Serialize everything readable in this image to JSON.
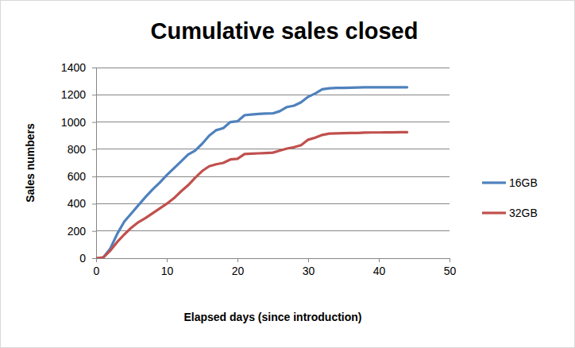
{
  "chart_data": {
    "type": "line",
    "title": "Cumulative sales closed",
    "x_label": "Elapsed days (since introduction)",
    "y_label": "Sales numbers",
    "x": [
      0,
      1,
      2,
      3,
      4,
      5,
      6,
      7,
      8,
      9,
      10,
      11,
      12,
      13,
      14,
      15,
      16,
      17,
      18,
      19,
      20,
      21,
      22,
      23,
      24,
      25,
      26,
      27,
      28,
      29,
      30,
      31,
      32,
      33,
      34,
      35,
      36,
      37,
      38,
      39,
      40,
      41,
      42,
      43,
      44
    ],
    "series": [
      {
        "name": "16GB",
        "color": "#4f81bd",
        "values": [
          0,
          5,
          70,
          180,
          270,
          330,
          390,
          450,
          505,
          555,
          610,
          660,
          710,
          760,
          790,
          840,
          900,
          940,
          955,
          1000,
          1005,
          1050,
          1055,
          1060,
          1062,
          1063,
          1080,
          1110,
          1120,
          1145,
          1185,
          1210,
          1240,
          1248,
          1250,
          1251,
          1252,
          1253,
          1255,
          1255,
          1255,
          1255,
          1255,
          1255,
          1255
        ]
      },
      {
        "name": "32GB",
        "color": "#c0504d",
        "values": [
          0,
          5,
          55,
          120,
          175,
          225,
          265,
          295,
          330,
          365,
          400,
          440,
          490,
          535,
          590,
          640,
          675,
          690,
          700,
          725,
          730,
          765,
          768,
          770,
          772,
          775,
          790,
          805,
          815,
          830,
          870,
          885,
          905,
          915,
          917,
          918,
          919,
          920,
          922,
          923,
          923,
          924,
          924,
          925,
          925
        ]
      }
    ],
    "xlim": [
      0,
      50
    ],
    "xticks": [
      0,
      10,
      20,
      30,
      40,
      50
    ],
    "ylim": [
      0,
      1400
    ],
    "yticks": [
      0,
      200,
      400,
      600,
      800,
      1000,
      1200,
      1400
    ],
    "grid": true,
    "legend": "right"
  }
}
